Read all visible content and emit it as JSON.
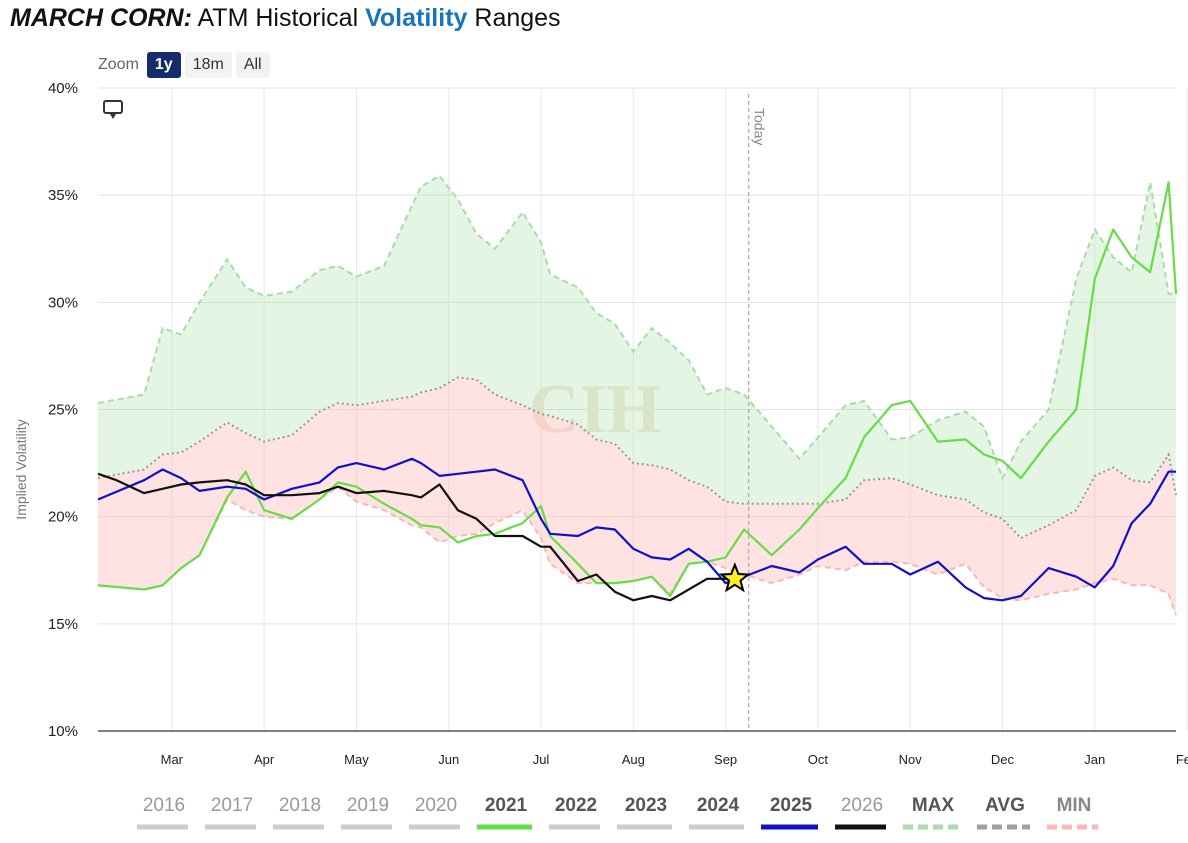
{
  "title": {
    "part1": "MARCH CORN:",
    "part2": " ATM Historical ",
    "part3": "Volatility",
    "part4": " Ranges"
  },
  "zoom": {
    "label": "Zoom",
    "buttons": [
      "1y",
      "18m",
      "All"
    ],
    "active": "1y"
  },
  "watermark": "CIH",
  "chart_data": {
    "type": "line",
    "title": "MARCH CORN: ATM Historical Volatility Ranges",
    "ylabel": "Implied Volatility",
    "ylim": [
      10,
      40
    ],
    "yticks": [
      10,
      15,
      20,
      25,
      30,
      35,
      40
    ],
    "ytick_format": "%",
    "x_tick_labels": [
      "Mar",
      "Apr",
      "May",
      "Jun",
      "Jul",
      "Aug",
      "Sep",
      "Oct",
      "Nov",
      "Dec",
      "Jan",
      "Feb"
    ],
    "x_range_months": [
      1.4,
      13.08
    ],
    "x_tick_months": [
      2.2,
      3.2,
      4.2,
      5.2,
      6.2,
      7.2,
      8.2,
      9.2,
      10.2,
      11.2,
      12.2,
      13.2
    ],
    "today_month": 8.45,
    "today_label": "Today",
    "marker": {
      "month": 8.3,
      "value": 17.1,
      "symbol": "star"
    },
    "grid": true,
    "legend_position": "bottom",
    "legend": [
      {
        "label": "2016",
        "color": "#cccccc",
        "style": "solid",
        "bold": false
      },
      {
        "label": "2017",
        "color": "#cccccc",
        "style": "solid",
        "bold": false
      },
      {
        "label": "2018",
        "color": "#cccccc",
        "style": "solid",
        "bold": false
      },
      {
        "label": "2019",
        "color": "#cccccc",
        "style": "solid",
        "bold": false
      },
      {
        "label": "2020",
        "color": "#cccccc",
        "style": "solid",
        "bold": false
      },
      {
        "label": "2021",
        "color": "#66dd44",
        "style": "solid",
        "bold": true
      },
      {
        "label": "2022",
        "color": "#cccccc",
        "style": "solid",
        "bold": true
      },
      {
        "label": "2023",
        "color": "#cccccc",
        "style": "solid",
        "bold": true
      },
      {
        "label": "2024",
        "color": "#cccccc",
        "style": "solid",
        "bold": true
      },
      {
        "label": "2025",
        "color": "#1010cc",
        "style": "solid",
        "bold": true
      },
      {
        "label": "2026",
        "color": "#111111",
        "style": "solid",
        "bold": false
      },
      {
        "label": "MAX",
        "color": "#a8dca8",
        "style": "dashed",
        "bold": true
      },
      {
        "label": "AVG",
        "color": "#a0a0a0",
        "style": "dashed",
        "bold": true
      },
      {
        "label": "MIN",
        "color": "#f8b8b8",
        "style": "dashed",
        "bold": true
      }
    ],
    "max": {
      "x": [
        1.4,
        1.9,
        2.1,
        2.3,
        2.5,
        2.8,
        3.0,
        3.2,
        3.5,
        3.8,
        4.0,
        4.2,
        4.5,
        4.8,
        4.9,
        5.1,
        5.3,
        5.5,
        5.7,
        6.0,
        6.2,
        6.3,
        6.6,
        6.8,
        7.0,
        7.2,
        7.4,
        7.6,
        7.8,
        8.0,
        8.2,
        8.4,
        8.7,
        9.0,
        9.2,
        9.5,
        9.7,
        10.0,
        10.2,
        10.5,
        10.8,
        11.0,
        11.2,
        11.4,
        11.7,
        12.0,
        12.2,
        12.4,
        12.6,
        12.8,
        13.0,
        13.08
      ],
      "y": [
        25.3,
        25.7,
        28.8,
        28.5,
        30.0,
        32.0,
        30.7,
        30.3,
        30.5,
        31.5,
        31.7,
        31.2,
        31.7,
        34.5,
        35.4,
        35.9,
        34.8,
        33.2,
        32.5,
        34.2,
        32.8,
        31.3,
        30.7,
        29.5,
        29.0,
        27.7,
        28.8,
        28.1,
        27.3,
        25.7,
        26.0,
        25.7,
        24.2,
        22.7,
        23.7,
        25.2,
        25.4,
        23.6,
        23.7,
        24.5,
        24.9,
        24.2,
        21.8,
        23.5,
        25.0,
        31.1,
        33.4,
        32.1,
        31.4,
        35.6,
        30.4,
        30.4
      ]
    },
    "avg": {
      "x": [
        1.4,
        1.9,
        2.1,
        2.3,
        2.5,
        2.8,
        3.0,
        3.2,
        3.5,
        3.8,
        4.0,
        4.2,
        4.5,
        4.8,
        4.9,
        5.1,
        5.3,
        5.5,
        5.7,
        6.0,
        6.2,
        6.3,
        6.6,
        6.8,
        7.0,
        7.2,
        7.4,
        7.6,
        7.8,
        8.0,
        8.2,
        8.4,
        8.7,
        9.0,
        9.2,
        9.5,
        9.7,
        10.0,
        10.2,
        10.5,
        10.8,
        11.0,
        11.2,
        11.4,
        11.7,
        12.0,
        12.2,
        12.4,
        12.6,
        12.8,
        13.0,
        13.08
      ],
      "y": [
        21.8,
        22.2,
        22.9,
        23.0,
        23.5,
        24.4,
        23.9,
        23.5,
        23.8,
        24.9,
        25.3,
        25.2,
        25.4,
        25.6,
        25.8,
        26.0,
        26.5,
        26.4,
        25.7,
        25.2,
        24.8,
        24.7,
        24.3,
        23.6,
        23.4,
        22.5,
        22.4,
        22.2,
        21.7,
        21.4,
        20.7,
        20.6,
        20.6,
        20.6,
        20.6,
        20.8,
        21.7,
        21.8,
        21.5,
        21.0,
        20.8,
        20.2,
        19.9,
        19.0,
        19.6,
        20.3,
        21.9,
        22.3,
        21.7,
        21.6,
        22.9,
        21.0
      ]
    },
    "min": {
      "x": [
        1.4,
        1.9,
        2.1,
        2.3,
        2.5,
        2.8,
        3.0,
        3.2,
        3.5,
        3.8,
        4.0,
        4.2,
        4.5,
        4.8,
        4.9,
        5.1,
        5.3,
        5.5,
        5.7,
        6.0,
        6.2,
        6.3,
        6.6,
        6.8,
        7.0,
        7.2,
        7.4,
        7.6,
        7.8,
        8.0,
        8.2,
        8.4,
        8.7,
        9.0,
        9.2,
        9.5,
        9.7,
        10.0,
        10.2,
        10.5,
        10.8,
        11.0,
        11.2,
        11.4,
        11.7,
        12.0,
        12.2,
        12.4,
        12.6,
        12.8,
        13.0,
        13.08
      ],
      "y": [
        16.8,
        16.6,
        16.8,
        17.6,
        18.2,
        20.8,
        20.3,
        20.0,
        19.9,
        20.8,
        21.4,
        20.7,
        20.3,
        19.6,
        19.5,
        18.8,
        19.1,
        19.2,
        19.7,
        20.3,
        19.0,
        17.8,
        16.9,
        16.9,
        16.9,
        17.0,
        17.2,
        16.4,
        17.8,
        17.9,
        17.6,
        17.3,
        16.9,
        17.3,
        17.7,
        17.5,
        17.9,
        17.9,
        17.8,
        17.3,
        17.8,
        16.7,
        16.2,
        16.1,
        16.4,
        16.6,
        16.9,
        17.1,
        16.8,
        16.8,
        16.4,
        15.4
      ]
    },
    "series": [
      {
        "name": "2021",
        "color": "#66dd44",
        "x": [
          1.4,
          1.9,
          2.1,
          2.3,
          2.5,
          2.8,
          3.0,
          3.2,
          3.5,
          3.8,
          4.0,
          4.2,
          4.5,
          4.8,
          4.9,
          5.1,
          5.3,
          5.5,
          5.7,
          6.0,
          6.2,
          6.3,
          6.6,
          6.8,
          7.0,
          7.2,
          7.4,
          7.6,
          7.8,
          8.0,
          8.2,
          8.4,
          8.7,
          9.0,
          9.2,
          9.5,
          9.7,
          10.0,
          10.2,
          10.5,
          10.8,
          11.0,
          11.2,
          11.4,
          11.7,
          12.0,
          12.2,
          12.4,
          12.6,
          12.8,
          13.0,
          13.08
        ],
        "y": [
          16.8,
          16.6,
          16.8,
          17.6,
          18.2,
          20.9,
          22.1,
          20.3,
          19.9,
          20.8,
          21.6,
          21.4,
          20.6,
          19.9,
          19.6,
          19.5,
          18.8,
          19.1,
          19.2,
          19.7,
          20.5,
          19.1,
          17.8,
          16.9,
          16.9,
          17.0,
          17.2,
          16.3,
          17.8,
          17.9,
          18.1,
          19.4,
          18.2,
          19.4,
          20.4,
          21.8,
          23.7,
          25.2,
          25.4,
          23.5,
          23.6,
          22.9,
          22.6,
          21.8,
          23.5,
          25.0,
          31.1,
          33.4,
          32.1,
          31.4,
          35.6,
          30.4
        ]
      },
      {
        "name": "2025",
        "color": "#1010cc",
        "x": [
          1.4,
          1.9,
          2.1,
          2.3,
          2.5,
          2.8,
          3.0,
          3.2,
          3.5,
          3.8,
          4.0,
          4.2,
          4.5,
          4.8,
          4.9,
          5.1,
          5.3,
          5.5,
          5.7,
          6.0,
          6.2,
          6.3,
          6.6,
          6.8,
          7.0,
          7.2,
          7.4,
          7.6,
          7.8,
          8.0,
          8.2,
          8.4,
          8.7,
          9.0,
          9.2,
          9.5,
          9.7,
          10.0,
          10.2,
          10.5,
          10.8,
          11.0,
          11.2,
          11.4,
          11.7,
          12.0,
          12.2,
          12.4,
          12.6,
          12.8,
          13.0,
          13.08
        ],
        "y": [
          20.8,
          21.7,
          22.2,
          21.8,
          21.2,
          21.4,
          21.3,
          20.8,
          21.3,
          21.6,
          22.3,
          22.5,
          22.2,
          22.7,
          22.5,
          21.9,
          22.0,
          22.1,
          22.2,
          21.7,
          19.9,
          19.2,
          19.1,
          19.5,
          19.4,
          18.5,
          18.1,
          18.0,
          18.5,
          17.9,
          16.9,
          17.2,
          17.7,
          17.4,
          18.0,
          18.6,
          17.8,
          17.8,
          17.3,
          17.9,
          16.7,
          16.2,
          16.1,
          16.3,
          17.6,
          17.2,
          16.7,
          17.7,
          19.7,
          20.6,
          22.1,
          22.1
        ]
      },
      {
        "name": "2026",
        "color": "#111111",
        "x": [
          1.4,
          1.6,
          1.9,
          2.1,
          2.3,
          2.5,
          2.8,
          3.0,
          3.2,
          3.5,
          3.8,
          4.0,
          4.2,
          4.5,
          4.8,
          4.9,
          5.1,
          5.3,
          5.5,
          5.7,
          6.0,
          6.2,
          6.3,
          6.6,
          6.8,
          7.0,
          7.2,
          7.4,
          7.6,
          7.8,
          8.0,
          8.2,
          8.3
        ],
        "y": [
          22.0,
          21.7,
          21.1,
          21.3,
          21.5,
          21.6,
          21.7,
          21.5,
          21.0,
          21.0,
          21.1,
          21.4,
          21.1,
          21.2,
          21.0,
          20.9,
          21.5,
          20.3,
          19.9,
          19.1,
          19.1,
          18.6,
          18.6,
          17.0,
          17.3,
          16.5,
          16.1,
          16.3,
          16.1,
          16.6,
          17.1,
          17.1,
          17.1
        ]
      }
    ]
  }
}
